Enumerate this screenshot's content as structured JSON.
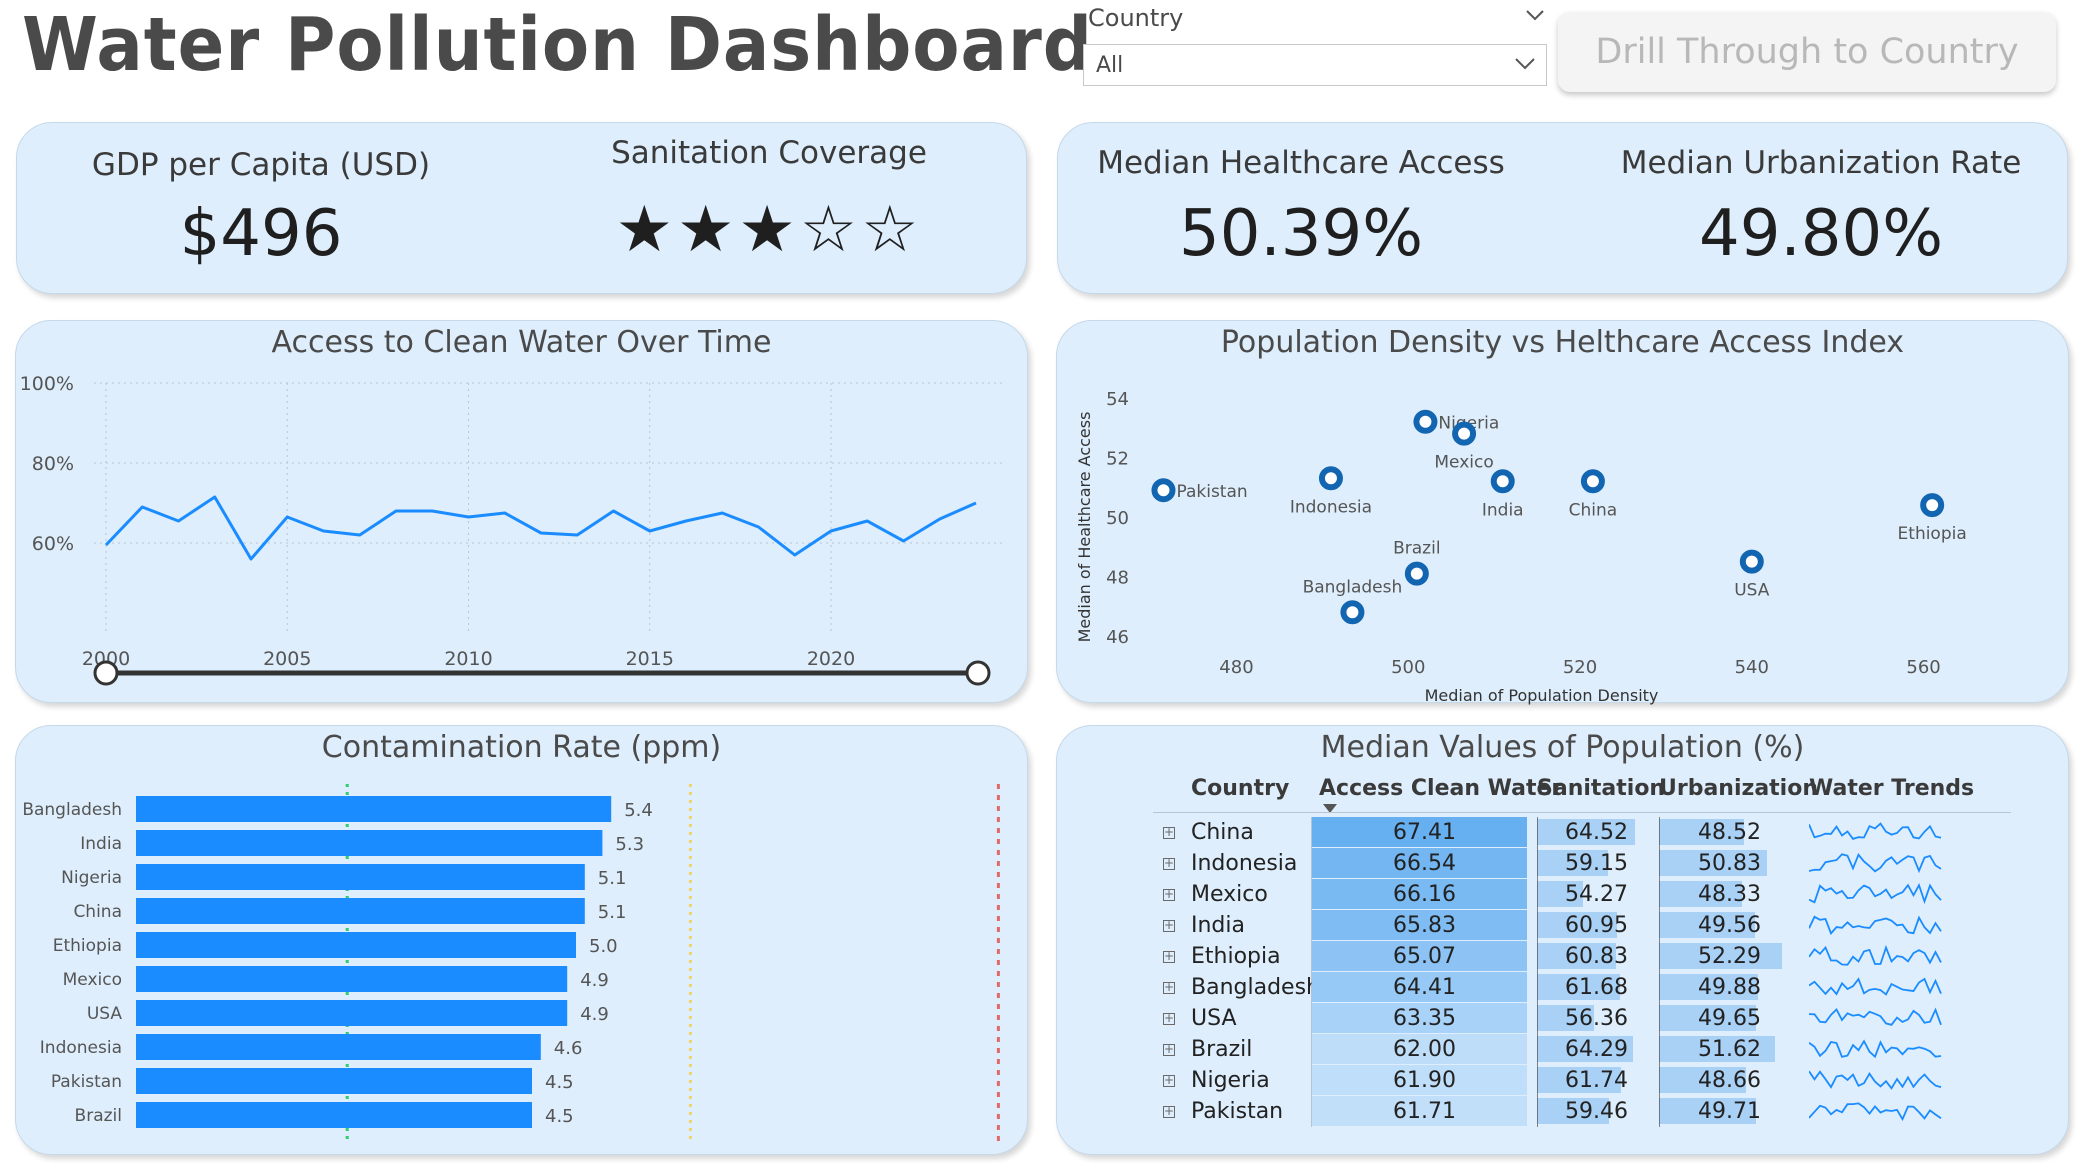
{
  "header": {
    "title": "Water Pollution Dashboard",
    "slicer_label": "Country",
    "slicer_value": "All",
    "drill_button_label": "Drill Through to Country"
  },
  "kpis": {
    "gdp_label": "GDP per Capita (USD)",
    "gdp_value": "$496",
    "sanitation_label": "Sanitation Coverage",
    "sanitation_stars": 3,
    "sanitation_max_stars": 5,
    "healthcare_label": "Median Healthcare Access",
    "healthcare_value": "50.39%",
    "urbanization_label": "Median Urbanization Rate",
    "urbanization_value": "49.80%"
  },
  "colors": {
    "card_bg": "#deeefc",
    "line": "#1a8cff",
    "bar": "#1a8cff",
    "marker": "#1265b0",
    "ref_green": "#2ecc71",
    "ref_yellow": "#f2d36b",
    "ref_red": "#e06a6a"
  },
  "line_chart": {
    "title": "Access to Clean Water Over Time"
  },
  "scatter_chart": {
    "title": "Population Density vs Helthcare Access Index"
  },
  "bar_chart": {
    "title": "Contamination Rate (ppm)"
  },
  "chart_data": [
    {
      "type": "line",
      "title": "Access to Clean Water Over Time",
      "x": [
        2000,
        2001,
        2002,
        2003,
        2004,
        2005,
        2006,
        2007,
        2008,
        2009,
        2010,
        2011,
        2012,
        2013,
        2014,
        2015,
        2016,
        2017,
        2018,
        2019,
        2020,
        2021,
        2022,
        2023,
        2024
      ],
      "values": [
        59.5,
        69,
        65.5,
        71.5,
        56,
        66.5,
        63,
        62,
        68,
        68,
        66.5,
        67.5,
        62.5,
        62,
        68,
        63,
        65.5,
        67.5,
        64,
        57,
        63,
        65.5,
        60.5,
        66,
        70
      ],
      "ylim": [
        40,
        100
      ],
      "y_ticks": [
        "100%",
        "80%",
        "60%"
      ],
      "y_tick_values": [
        100,
        80,
        60
      ],
      "x_ticks": [
        2000,
        2005,
        2010,
        2015,
        2020
      ],
      "grid": true,
      "range_slider": [
        2000,
        2024
      ]
    },
    {
      "type": "scatter",
      "title": "Population Density vs Helthcare Access Index",
      "xlabel": "Median of Population Density",
      "ylabel": "Median of Healthcare Access",
      "xlim": [
        469,
        576
      ],
      "ylim": [
        45.5,
        54.5
      ],
      "x_ticks": [
        480,
        500,
        520,
        540,
        560
      ],
      "y_ticks": [
        46,
        48,
        50,
        52,
        54
      ],
      "points": [
        {
          "label": "Pakistan",
          "x": 471.5,
          "y": 50.9
        },
        {
          "label": "Nigeria",
          "x": 502,
          "y": 53.2
        },
        {
          "label": "Mexico",
          "x": 506.5,
          "y": 52.8
        },
        {
          "label": "Indonesia",
          "x": 491,
          "y": 51.3
        },
        {
          "label": "India",
          "x": 511,
          "y": 51.2
        },
        {
          "label": "China",
          "x": 521.5,
          "y": 51.2
        },
        {
          "label": "Ethiopia",
          "x": 561,
          "y": 50.4
        },
        {
          "label": "Brazil",
          "x": 501,
          "y": 48.1
        },
        {
          "label": "Bangladesh",
          "x": 493.5,
          "y": 46.8
        },
        {
          "label": "USA",
          "x": 540,
          "y": 48.5
        }
      ]
    },
    {
      "type": "bar",
      "title": "Contamination Rate (ppm)",
      "categories": [
        "Bangladesh",
        "India",
        "Nigeria",
        "China",
        "Ethiopia",
        "Mexico",
        "USA",
        "Indonesia",
        "Pakistan",
        "Brazil"
      ],
      "values": [
        5.4,
        5.3,
        5.1,
        5.1,
        5.0,
        4.9,
        4.9,
        4.6,
        4.5,
        4.5
      ],
      "value_labels": [
        "5.4",
        "5.3",
        "5.1",
        "5.1",
        "5.0",
        "4.9",
        "4.9",
        "4.6",
        "4.5",
        "4.5"
      ],
      "xlim": [
        0,
        10
      ]
    }
  ],
  "table": {
    "title": "Median Values of Population (%)",
    "headers": [
      "Country",
      "Access Clean Water",
      "Sanitation",
      "Urbanization",
      "Water Trends"
    ],
    "rows": [
      {
        "country": "China",
        "water": "67.41",
        "sanitation": "64.52",
        "urban": "48.52"
      },
      {
        "country": "Indonesia",
        "water": "66.54",
        "sanitation": "59.15",
        "urban": "50.83"
      },
      {
        "country": "Mexico",
        "water": "66.16",
        "sanitation": "54.27",
        "urban": "48.33"
      },
      {
        "country": "India",
        "water": "65.83",
        "sanitation": "60.95",
        "urban": "49.56"
      },
      {
        "country": "Ethiopia",
        "water": "65.07",
        "sanitation": "60.83",
        "urban": "52.29"
      },
      {
        "country": "Bangladesh",
        "water": "64.41",
        "sanitation": "61.68",
        "urban": "49.88"
      },
      {
        "country": "USA",
        "water": "63.35",
        "sanitation": "56.36",
        "urban": "49.65"
      },
      {
        "country": "Brazil",
        "water": "62.00",
        "sanitation": "64.29",
        "urban": "51.62"
      },
      {
        "country": "Nigeria",
        "water": "61.90",
        "sanitation": "61.74",
        "urban": "48.66"
      },
      {
        "country": "Pakistan",
        "water": "61.71",
        "sanitation": "59.46",
        "urban": "49.71"
      }
    ]
  }
}
